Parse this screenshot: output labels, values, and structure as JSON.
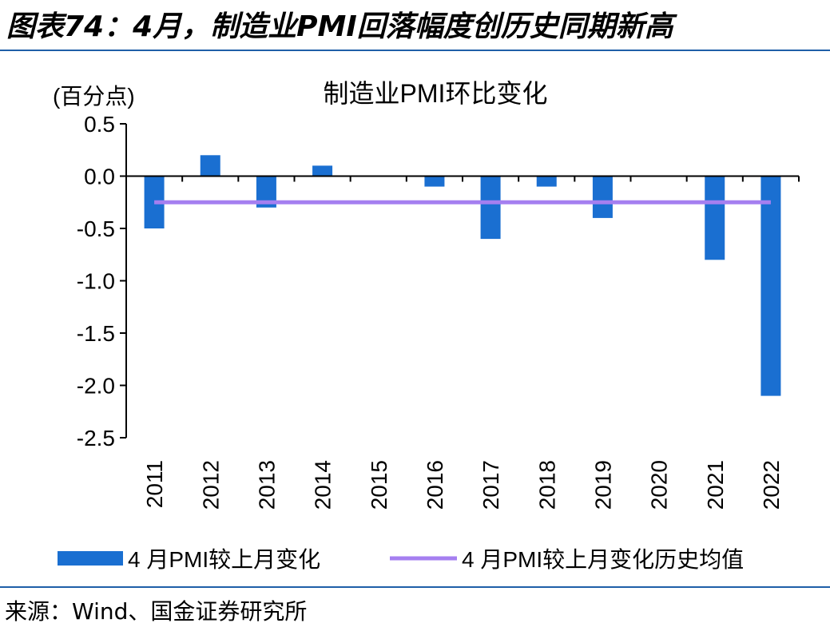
{
  "figure_title": "图表74：4月，制造业PMI回落幅度创历史同期新高",
  "source": "来源：Wind、国金证券研究所",
  "colors": {
    "bar": "#1a6fd1",
    "line": "#a57ff0",
    "rule": "#1f5fa8"
  },
  "chart_data": {
    "type": "bar",
    "title": "制造业PMI环比变化",
    "ylabel": "(百分点)",
    "xlabel": "",
    "ylim": [
      -2.5,
      0.5
    ],
    "yticks": [
      0.5,
      0.0,
      -0.5,
      -1.0,
      -1.5,
      -2.0,
      -2.5
    ],
    "ytick_labels": [
      "0.5",
      "0.0",
      "-0.5",
      "-1.0",
      "-1.5",
      "-2.0",
      "-2.5"
    ],
    "categories": [
      "2011",
      "2012",
      "2013",
      "2014",
      "2015",
      "2016",
      "2017",
      "2018",
      "2019",
      "2020",
      "2021",
      "2022"
    ],
    "series": [
      {
        "name": "4 月PMI较上月变化",
        "type": "bar",
        "values": [
          -0.5,
          0.2,
          -0.3,
          0.1,
          0.0,
          -0.1,
          -0.6,
          -0.1,
          -0.4,
          0.0,
          -0.8,
          -2.1
        ]
      },
      {
        "name": "4 月PMI较上月变化历史均值",
        "type": "line",
        "values": [
          -0.25,
          -0.25,
          -0.25,
          -0.25,
          -0.25,
          -0.25,
          -0.25,
          -0.25,
          -0.25,
          -0.25,
          -0.25,
          -0.25
        ]
      }
    ],
    "legend_position": "bottom",
    "grid": false
  }
}
